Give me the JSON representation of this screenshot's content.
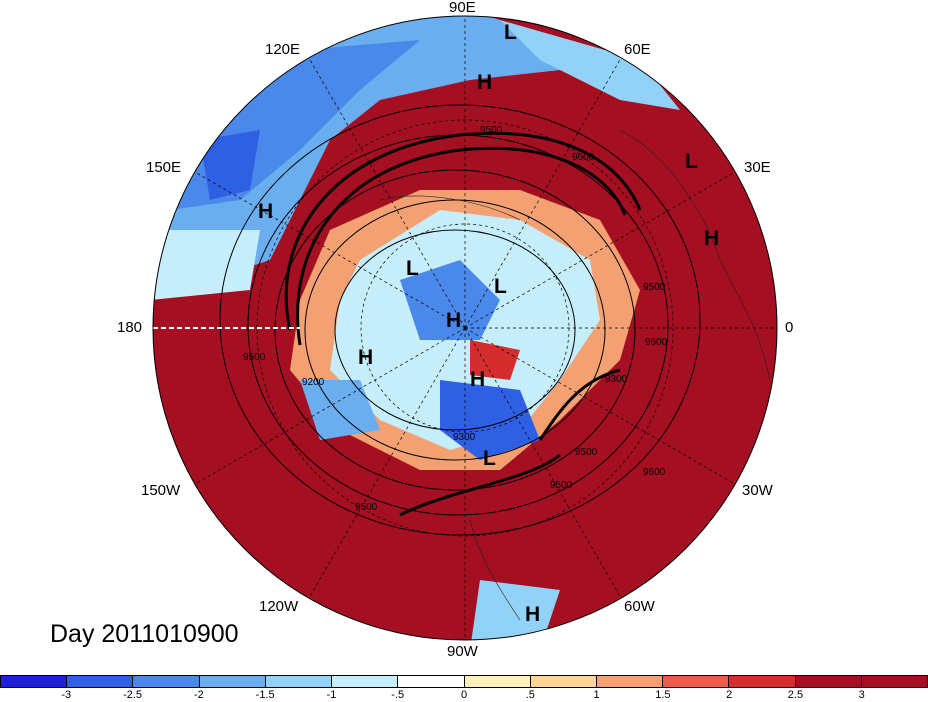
{
  "title": "Day 2011010900",
  "longitude_labels": {
    "l90e": "90E",
    "l60e": "60E",
    "l30e": "30E",
    "l0": "0",
    "l30w": "30W",
    "l60w": "60W",
    "l90w": "90W",
    "l120w": "120W",
    "l150w": "150W",
    "l180": "180",
    "l150e": "150E",
    "l120e": "120E"
  },
  "pressure_centers": [
    {
      "type": "L"
    },
    {
      "type": "H"
    },
    {
      "type": "L"
    },
    {
      "type": "H"
    },
    {
      "type": "H"
    },
    {
      "type": "L"
    },
    {
      "type": "L"
    },
    {
      "type": "H"
    },
    {
      "type": "H"
    },
    {
      "type": "H"
    },
    {
      "type": "L"
    },
    {
      "type": "H"
    }
  ],
  "contour_labels": [
    "9500",
    "9600",
    "9500",
    "9200",
    "9500",
    "9300",
    "9500",
    "9600",
    "9500",
    "9600",
    "9300",
    "9500"
  ],
  "colorbar": {
    "ticks": [
      "-3",
      "-2.5",
      "-2",
      "-1.5",
      "-1",
      "-.5",
      "0",
      ".5",
      "1",
      "1.5",
      "2",
      "2.5",
      "3"
    ],
    "colors": [
      "#2020d8",
      "#2f5fe3",
      "#4a88ea",
      "#6aaef0",
      "#92d2f7",
      "#c5eefa",
      "#ffffff",
      "#fdf0b8",
      "#fbd595",
      "#f3a173",
      "#ea5d4b",
      "#d42d2d",
      "#a50f22",
      "#a50f22"
    ]
  },
  "chart_data": {
    "type": "heatmap",
    "projection": "north polar stereographic",
    "colorbar_range": [
      -3,
      3
    ],
    "colorbar_interval": 0.5,
    "contour_interval_approx": 100
  }
}
